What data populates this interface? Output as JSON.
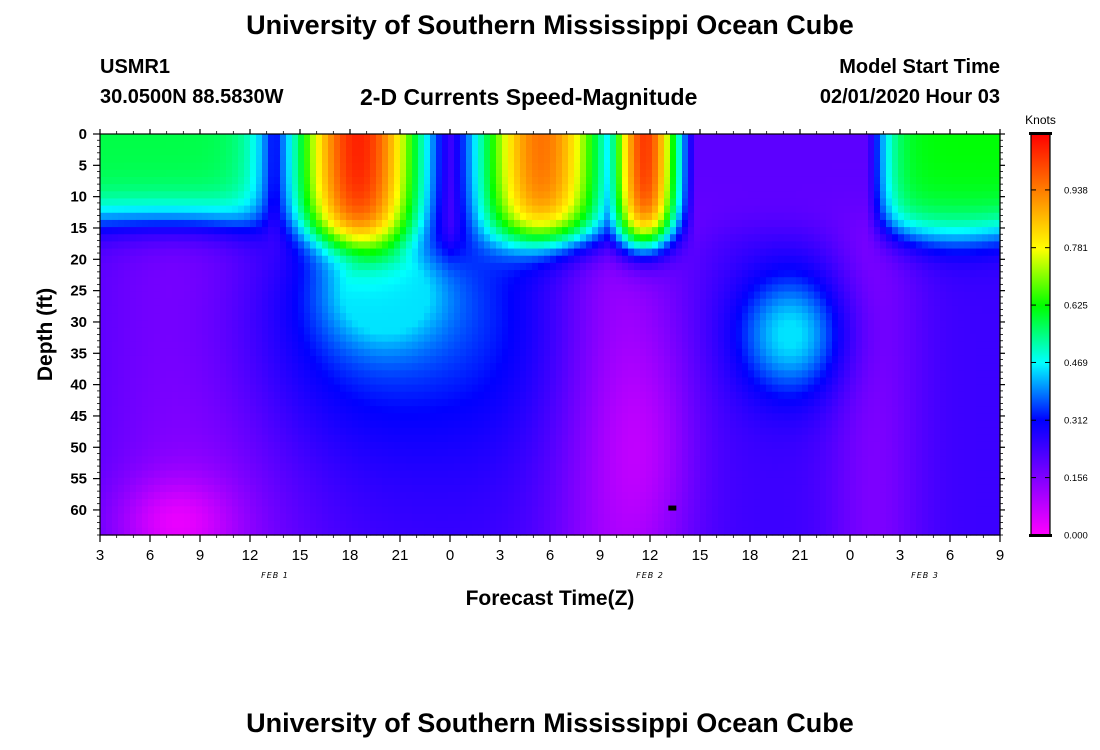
{
  "page": {
    "title_top": "University of Southern Mississippi Ocean Cube",
    "title_bottom": "University of Southern Mississippi Ocean Cube",
    "station": "USMR1",
    "coords": "30.0500N 88.5830W",
    "model_start_label": "Model Start Time",
    "model_start_time": "02/01/2020 Hour 03"
  },
  "chart_data": {
    "type": "heatmap",
    "title": "2-D Currents Speed-Magnitude",
    "xlabel": "Forecast Time(Z)",
    "ylabel": "Depth (ft)",
    "x_tick_labels": [
      "3",
      "6",
      "9",
      "12",
      "15",
      "18",
      "21",
      "0",
      "3",
      "6",
      "9",
      "12",
      "15",
      "18",
      "21",
      "0",
      "3",
      "6",
      "9"
    ],
    "x_hours_from_start": [
      0,
      3,
      6,
      9,
      12,
      15,
      18,
      21,
      24,
      27,
      30,
      33,
      36,
      39,
      42,
      45,
      48,
      51,
      54
    ],
    "xlim_hours": [
      0,
      54
    ],
    "date_labels": [
      {
        "text": "FEB 1",
        "hour": 10.5
      },
      {
        "text": "FEB 2",
        "hour": 33
      },
      {
        "text": "FEB 3",
        "hour": 49.5
      }
    ],
    "y_ticks": [
      0,
      5,
      10,
      15,
      20,
      25,
      30,
      35,
      40,
      45,
      50,
      55,
      60
    ],
    "ylim_ft": [
      0,
      64
    ],
    "y_inverted": true,
    "colorbar": {
      "label": "Knots",
      "ticks": [
        "0.000",
        "0.156",
        "0.312",
        "0.469",
        "0.625",
        "0.781",
        "0.938"
      ],
      "tick_values": [
        0,
        0.156,
        0.312,
        0.469,
        0.625,
        0.781,
        0.938
      ],
      "range": [
        0,
        1.09
      ],
      "colors": [
        "#ff00ff",
        "#8000ff",
        "#0000ff",
        "#00ffff",
        "#00ff00",
        "#ffff00",
        "#ff8000",
        "#ff0000"
      ]
    },
    "speed_knots_hour_ranges": [
      {
        "hours": [
          0,
          9
        ],
        "surface": 0.58,
        "depth_20": 0.3,
        "bottom": 0.08
      },
      {
        "hours": [
          12,
          21
        ],
        "surface": 1.05,
        "depth_20": 0.4,
        "bottom": 0.24
      },
      {
        "hours": [
          24,
          30
        ],
        "surface": 0.95,
        "depth_20": 0.22,
        "bottom": 0.1
      },
      {
        "hours": [
          33,
          36
        ],
        "surface": 1.0,
        "depth_20": 0.2,
        "bottom": 0.03
      },
      {
        "hours": [
          39,
          42
        ],
        "surface": 0.22,
        "depth_20": 0.1,
        "depth_30": 0.36,
        "bottom": 0.14
      },
      {
        "hours": [
          48,
          54
        ],
        "surface": 0.6,
        "depth_20": 0.25,
        "bottom": 0.1
      }
    ]
  }
}
